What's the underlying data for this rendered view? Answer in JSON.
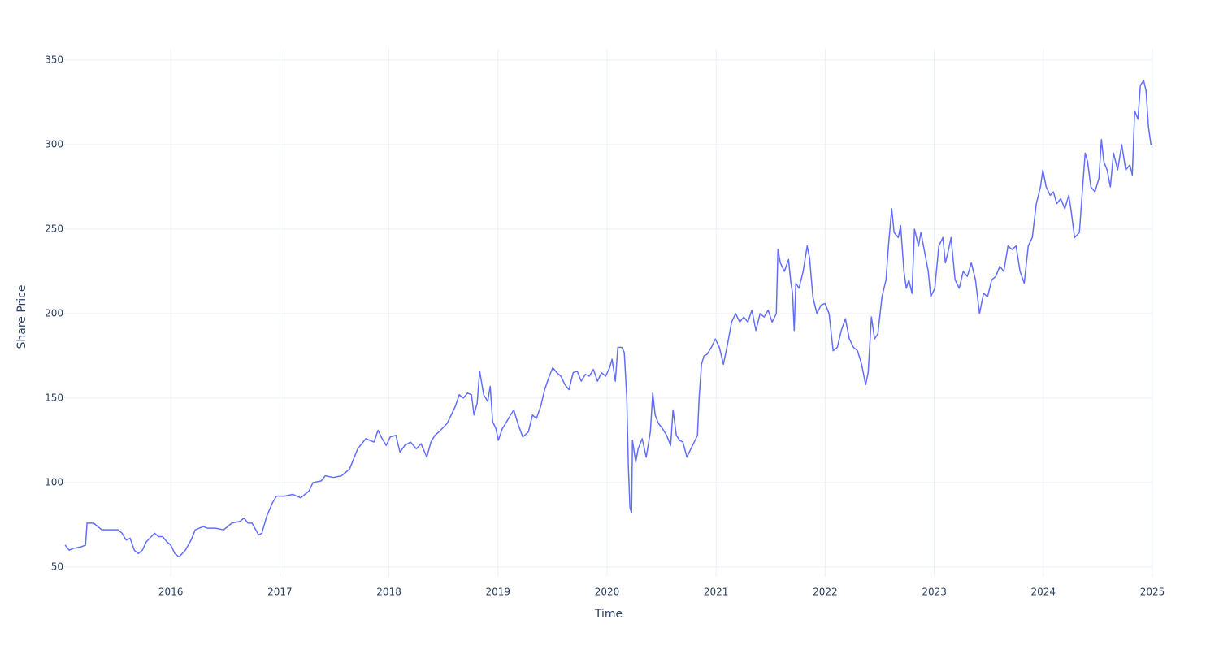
{
  "chart_data": {
    "type": "line",
    "x_label": "Time",
    "y_label": "Share Price",
    "x": [
      2015.031,
      2015.068,
      2015.106,
      2015.18,
      2015.218,
      2015.232,
      2015.292,
      2015.367,
      2015.441,
      2015.516,
      2015.553,
      2015.59,
      2015.627,
      2015.665,
      2015.702,
      2015.739,
      2015.776,
      2015.851,
      2015.888,
      2015.925,
      2015.963,
      2016,
      2016.037,
      2016.075,
      2016.134,
      2016.186,
      2016.224,
      2016.298,
      2016.335,
      2016.41,
      2016.484,
      2016.559,
      2016.633,
      2016.671,
      2016.708,
      2016.745,
      2016.805,
      2016.835,
      2016.879,
      2016.932,
      2016.969,
      2017.043,
      2017.118,
      2017.192,
      2017.267,
      2017.304,
      2017.379,
      2017.416,
      2017.49,
      2017.565,
      2017.639,
      2017.714,
      2017.788,
      2017.863,
      2017.9,
      2017.938,
      2017.975,
      2018.012,
      2018.064,
      2018.101,
      2018.146,
      2018.198,
      2018.251,
      2018.295,
      2018.347,
      2018.385,
      2018.422,
      2018.459,
      2018.534,
      2018.571,
      2018.608,
      2018.645,
      2018.683,
      2018.72,
      2018.757,
      2018.78,
      2018.809,
      2018.832,
      2018.869,
      2018.906,
      2018.929,
      2018.951,
      2018.981,
      2019.003,
      2019.04,
      2019.07,
      2019.115,
      2019.145,
      2019.182,
      2019.227,
      2019.279,
      2019.316,
      2019.353,
      2019.391,
      2019.428,
      2019.465,
      2019.502,
      2019.54,
      2019.577,
      2019.614,
      2019.651,
      2019.689,
      2019.726,
      2019.763,
      2019.801,
      2019.838,
      2019.875,
      2019.912,
      2019.95,
      2019.987,
      2020.024,
      2020.046,
      2020.076,
      2020.099,
      2020.136,
      2020.158,
      2020.181,
      2020.195,
      2020.21,
      2020.225,
      2020.233,
      2020.263,
      2020.285,
      2020.322,
      2020.359,
      2020.397,
      2020.419,
      2020.441,
      2020.471,
      2020.508,
      2020.546,
      2020.583,
      2020.605,
      2020.635,
      2020.665,
      2020.695,
      2020.732,
      2020.769,
      2020.807,
      2020.829,
      2020.844,
      2020.866,
      2020.889,
      2020.918,
      2020.956,
      2020.993,
      2021.03,
      2021.067,
      2021.105,
      2021.142,
      2021.179,
      2021.216,
      2021.254,
      2021.291,
      2021.328,
      2021.365,
      2021.403,
      2021.44,
      2021.477,
      2021.514,
      2021.552,
      2021.567,
      2021.589,
      2021.626,
      2021.664,
      2021.686,
      2021.701,
      2021.716,
      2021.731,
      2021.76,
      2021.798,
      2021.835,
      2021.857,
      2021.887,
      2021.924,
      2021.962,
      2021.999,
      2022.036,
      2022.073,
      2022.111,
      2022.148,
      2022.185,
      2022.222,
      2022.26,
      2022.297,
      2022.334,
      2022.371,
      2022.394,
      2022.424,
      2022.453,
      2022.483,
      2022.521,
      2022.558,
      2022.58,
      2022.61,
      2022.632,
      2022.67,
      2022.692,
      2022.722,
      2022.744,
      2022.767,
      2022.796,
      2022.819,
      2022.856,
      2022.878,
      2022.916,
      2022.945,
      2022.968,
      2023.005,
      2023.042,
      2023.079,
      2023.102,
      2023.132,
      2023.154,
      2023.191,
      2023.229,
      2023.266,
      2023.303,
      2023.34,
      2023.378,
      2023.415,
      2023.452,
      2023.489,
      2023.527,
      2023.564,
      2023.601,
      2023.638,
      2023.676,
      2023.713,
      2023.75,
      2023.787,
      2023.825,
      2023.862,
      2023.899,
      2023.936,
      2023.974,
      2023.996,
      2024.026,
      2024.063,
      2024.093,
      2024.123,
      2024.16,
      2024.197,
      2024.234,
      2024.257,
      2024.287,
      2024.331,
      2024.361,
      2024.384,
      2024.406,
      2024.436,
      2024.473,
      2024.51,
      2024.533,
      2024.555,
      2024.585,
      2024.615,
      2024.644,
      2024.682,
      2024.719,
      2024.756,
      2024.794,
      2024.816,
      2024.838,
      2024.868,
      2024.89,
      2024.92,
      2024.942,
      2024.965,
      2024.987,
      2025
    ],
    "series": [
      {
        "color": "#636efa",
        "values": [
          63,
          60,
          61,
          62,
          63,
          76,
          76,
          72,
          72,
          72,
          70,
          66,
          67,
          60,
          58,
          60,
          65,
          70,
          68,
          68,
          65,
          63,
          58,
          56,
          60,
          66,
          72,
          74,
          73,
          73,
          72,
          76,
          77,
          79,
          76,
          76,
          69,
          70,
          80,
          88,
          92,
          92,
          93,
          91,
          95,
          100,
          101,
          104,
          103,
          104,
          108,
          120,
          126,
          124,
          131,
          126,
          122,
          127,
          128,
          118,
          122,
          124,
          120,
          123,
          115,
          124,
          128,
          130,
          135,
          140,
          145,
          152,
          150,
          153,
          152,
          140,
          147,
          166,
          152,
          148,
          157,
          136,
          132,
          125,
          132,
          135,
          140,
          143,
          135,
          127,
          130,
          140,
          138,
          145,
          155,
          162,
          168,
          165,
          163,
          158,
          155,
          165,
          166,
          160,
          164,
          163,
          167,
          160,
          165,
          163,
          168,
          173,
          160,
          180,
          180,
          177,
          150,
          110,
          85,
          82,
          125,
          112,
          120,
          126,
          115,
          130,
          153,
          140,
          135,
          132,
          128,
          122,
          143,
          128,
          125,
          124,
          115,
          120,
          125,
          128,
          150,
          170,
          175,
          176,
          180,
          185,
          180,
          170,
          182,
          195,
          200,
          195,
          198,
          195,
          202,
          190,
          200,
          198,
          202,
          195,
          200,
          238,
          230,
          225,
          232,
          218,
          212,
          190,
          218,
          215,
          225,
          240,
          233,
          210,
          200,
          205,
          206,
          200,
          178,
          180,
          190,
          197,
          185,
          180,
          178,
          170,
          158,
          165,
          198,
          185,
          188,
          210,
          220,
          240,
          262,
          248,
          245,
          252,
          225,
          215,
          220,
          212,
          250,
          240,
          248,
          235,
          225,
          210,
          215,
          240,
          245,
          230,
          238,
          245,
          220,
          215,
          225,
          222,
          230,
          220,
          200,
          212,
          210,
          220,
          222,
          228,
          225,
          240,
          238,
          240,
          225,
          218,
          240,
          245,
          265,
          275,
          285,
          275,
          270,
          272,
          265,
          268,
          262,
          270,
          260,
          245,
          248,
          275,
          295,
          290,
          275,
          272,
          280,
          303,
          290,
          285,
          275,
          295,
          285,
          300,
          285,
          288,
          282,
          320,
          315,
          335,
          338,
          332,
          310,
          300,
          300
        ]
      }
    ],
    "xlim": [
      2015.03,
      2025.0
    ],
    "xticks": [
      2016,
      2017,
      2018,
      2019,
      2020,
      2021,
      2022,
      2023,
      2024,
      2025
    ],
    "ylim": [
      44.2,
      356.7
    ],
    "yticks": [
      50,
      100,
      150,
      200,
      250,
      300,
      350
    ],
    "grid": true
  }
}
